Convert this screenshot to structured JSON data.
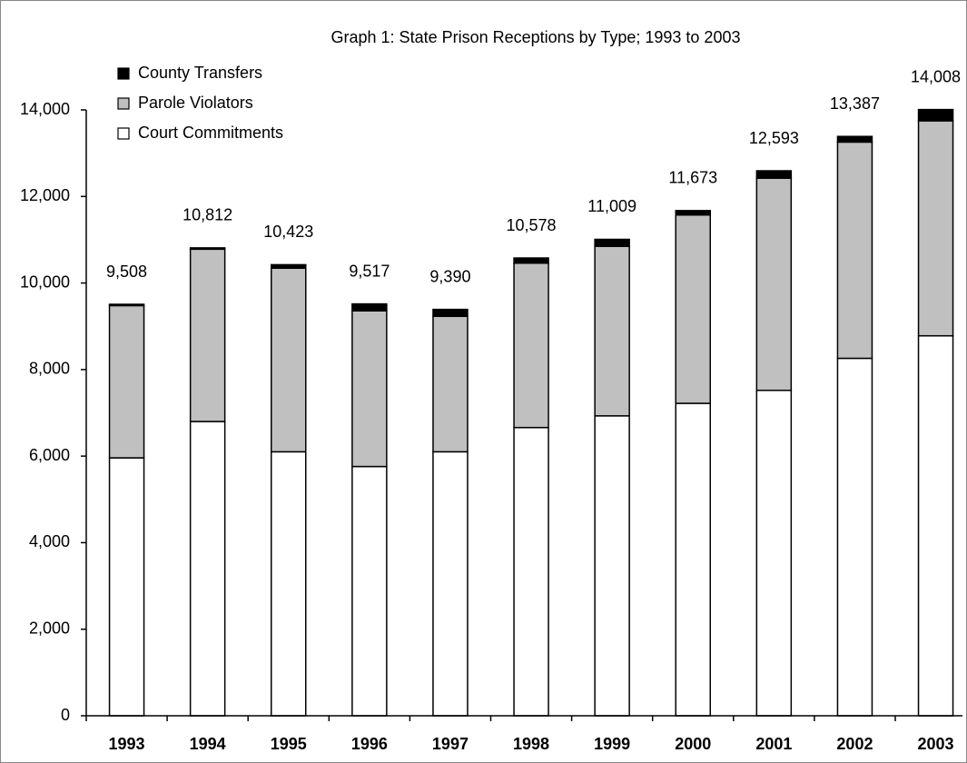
{
  "chart_data": {
    "type": "stacked_bar",
    "title": "Graph 1: State Prison Receptions by Type; 1993 to 2003",
    "categories": [
      "1993",
      "1994",
      "1995",
      "1996",
      "1997",
      "1998",
      "1999",
      "2000",
      "2001",
      "2002",
      "2003"
    ],
    "series": [
      {
        "name": "Court Commitments",
        "color": "#ffffff",
        "values": [
          5960,
          6800,
          6100,
          5760,
          6100,
          6660,
          6930,
          7220,
          7520,
          8260,
          8780
        ]
      },
      {
        "name": "Parole Violators",
        "color": "#c0c0c0",
        "values": [
          3518,
          3982,
          4243,
          3597,
          3130,
          3798,
          3919,
          4353,
          4903,
          4997,
          4968
        ]
      },
      {
        "name": "County Transfers",
        "color": "#000000",
        "values": [
          30,
          30,
          80,
          160,
          160,
          120,
          160,
          100,
          170,
          130,
          260
        ]
      }
    ],
    "totals": [
      9508,
      10812,
      10423,
      9517,
      9390,
      10578,
      11009,
      11673,
      12593,
      13387,
      14008
    ],
    "total_labels": [
      "9,508",
      "10,812",
      "10,423",
      "9,517",
      "9,390",
      "10,578",
      "11,009",
      "11,673",
      "12,593",
      "13,387",
      "14,008"
    ],
    "ylim": [
      0,
      14000
    ],
    "yticks": [
      0,
      {
        "value": 2000,
        "label": "2,000"
      },
      {
        "value": 4000,
        "label": "4,000"
      },
      {
        "value": 6000,
        "label": "6,000"
      },
      {
        "value": 8000,
        "label": "8,000"
      },
      {
        "value": 10000,
        "label": "10,000"
      },
      {
        "value": 12000,
        "label": "12,000"
      },
      {
        "value": 14000,
        "label": "14,000"
      }
    ],
    "legend": "top-left"
  }
}
